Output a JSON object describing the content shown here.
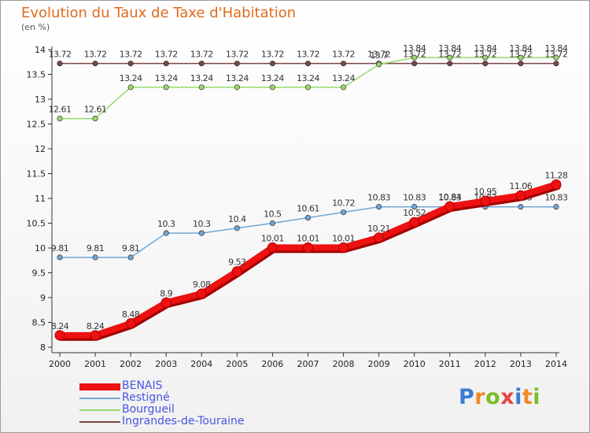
{
  "header": {
    "title": "Evolution du Taux de Taxe d'Habitation",
    "subtitle": "(en %)"
  },
  "logo": {
    "text": "Proxiti",
    "letters": [
      "P",
      "r",
      "o",
      "x",
      "i",
      "t",
      "i"
    ],
    "colors": [
      "#3a7bd5",
      "#f08a24",
      "#7cbd2a",
      "#e84545",
      "#3a7bd5",
      "#f08a24",
      "#7cbd2a"
    ]
  },
  "chart_data": {
    "type": "line",
    "x": [
      2000,
      2001,
      2002,
      2003,
      2004,
      2005,
      2006,
      2007,
      2008,
      2009,
      2010,
      2011,
      2012,
      2013,
      2014
    ],
    "ylim": [
      8,
      14
    ],
    "yticks": [
      8,
      8.5,
      9,
      9.5,
      10,
      10.5,
      11,
      11.5,
      12,
      12.5,
      13,
      13.5,
      14
    ],
    "ytick_labels": [
      "8",
      "8.5",
      "9",
      "9.5",
      "10",
      "10.5",
      "11",
      "11.5",
      "12",
      "12.5",
      "13",
      "13.5",
      "14"
    ],
    "grid": false,
    "legend_position": "bottom-left",
    "series": [
      {
        "name": "BENAIS",
        "color": "#ee1111",
        "legend_text_color": "#4a54e0",
        "values": [
          8.24,
          8.24,
          8.48,
          8.9,
          9.08,
          9.53,
          10.01,
          10.01,
          10.01,
          10.21,
          10.52,
          10.84,
          10.95,
          11.06,
          11.28
        ],
        "labels": [
          "8.24",
          "8.24",
          "8.48",
          "8.9",
          "9.08",
          "9.53",
          "10.01",
          "10.01",
          "10.01",
          "10.21",
          "10.52",
          "10.84",
          "10.95",
          "11.06",
          "11.28"
        ]
      },
      {
        "name": "Restigné",
        "color": "#6fa6d6",
        "legend_text_color": "#4a54e0",
        "values": [
          9.81,
          9.81,
          9.81,
          10.3,
          10.3,
          10.4,
          10.5,
          10.61,
          10.72,
          10.83,
          10.83,
          10.83,
          10.83,
          10.83,
          10.83
        ],
        "labels": [
          "9.81",
          "9.81",
          "9.81",
          "10.3",
          "10.3",
          "10.4",
          "10.5",
          "10.61",
          "10.72",
          "10.83",
          "10.83",
          "10.83",
          "10.83",
          "10.83",
          "10.83"
        ]
      },
      {
        "name": "Bourgueil",
        "color": "#99d96b",
        "legend_text_color": "#4a54e0",
        "values": [
          12.61,
          12.61,
          13.24,
          13.24,
          13.24,
          13.24,
          13.24,
          13.24,
          13.24,
          13.7,
          13.84,
          13.84,
          13.84,
          13.84,
          13.84
        ],
        "labels": [
          "12.61",
          "12.61",
          "13.24",
          "13.24",
          "13.24",
          "13.24",
          "13.24",
          "13.24",
          "13.24",
          "13.7",
          "13.84",
          "13.84",
          "13.84",
          "13.84",
          "13.84"
        ]
      },
      {
        "name": "Ingrandes-de-Touraine",
        "color": "#7a4646",
        "legend_text_color": "#4a54e0",
        "values": [
          13.72,
          13.72,
          13.72,
          13.72,
          13.72,
          13.72,
          13.72,
          13.72,
          13.72,
          13.72,
          13.72,
          13.72,
          13.72,
          13.72,
          13.72
        ],
        "labels": [
          "13.72",
          "13.72",
          "13.72",
          "13.72",
          "13.72",
          "13.72",
          "13.72",
          "13.72",
          "13.72",
          "13.72",
          "13.72",
          "13.72",
          "13.72",
          "13.72",
          "13.72"
        ]
      }
    ]
  }
}
